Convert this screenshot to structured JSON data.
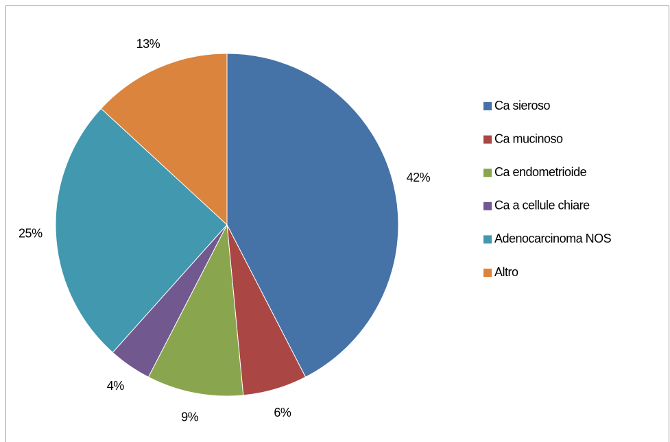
{
  "chart_data": {
    "type": "pie",
    "categories": [
      "Ca sieroso",
      "Ca mucinoso",
      "Ca endometrioide",
      "Ca a cellule chiare",
      "Adenocarcinoma NOS",
      "Altro"
    ],
    "values": [
      42,
      6,
      9,
      4,
      25,
      13
    ],
    "value_labels": [
      "42%",
      "6%",
      "9%",
      "4%",
      "25%",
      "13%"
    ],
    "colors": [
      "#4572a7",
      "#aa4643",
      "#89a54e",
      "#71588f",
      "#4198af",
      "#db843d"
    ],
    "legend": "right"
  }
}
